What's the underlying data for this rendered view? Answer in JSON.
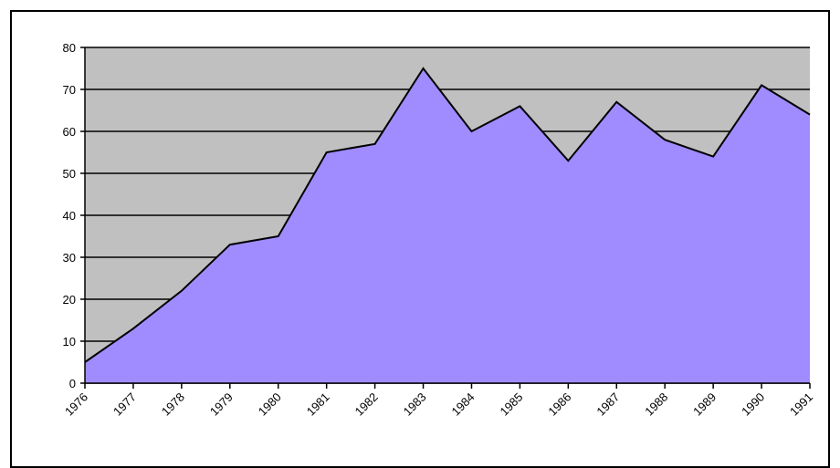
{
  "chart_data": {
    "type": "area",
    "categories": [
      "1976",
      "1977",
      "1978",
      "1979",
      "1980",
      "1981",
      "1982",
      "1983",
      "1984",
      "1985",
      "1986",
      "1987",
      "1988",
      "1989",
      "1990",
      "1991"
    ],
    "values": [
      5,
      13,
      22,
      33,
      35,
      55,
      57,
      75,
      60,
      66,
      53,
      67,
      58,
      54,
      71,
      64
    ],
    "color": "#a08cff",
    "plot_background": "#c0c0c0",
    "ylim": [
      0,
      80
    ],
    "yticks": [
      0,
      10,
      20,
      30,
      40,
      50,
      60,
      70,
      80
    ],
    "grid": true
  }
}
